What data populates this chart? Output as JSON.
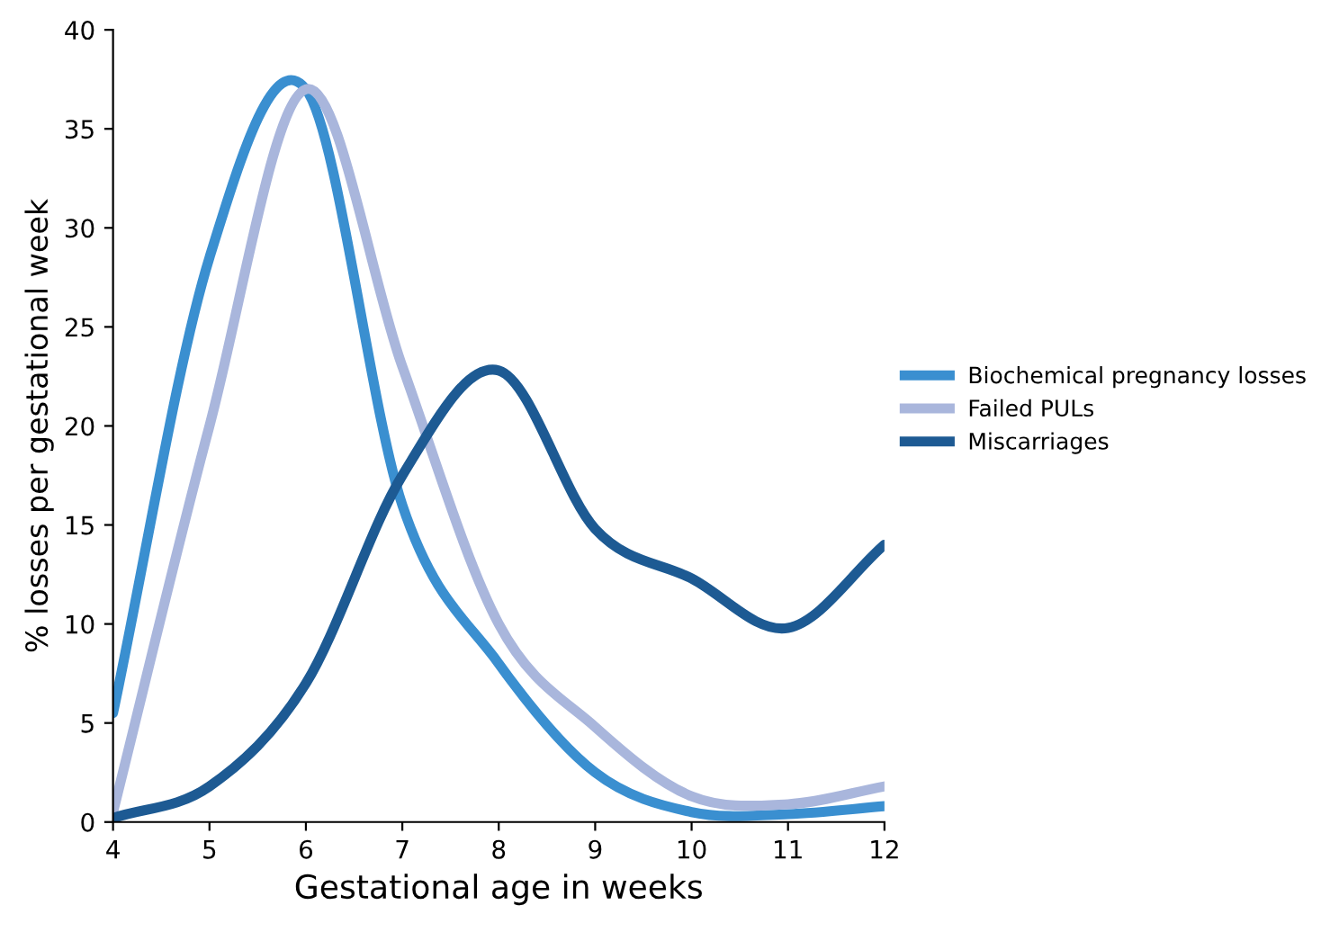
{
  "chart_data": {
    "type": "line",
    "xlabel": "Gestational age in weeks",
    "ylabel": "% losses per gestational week",
    "x": [
      4,
      5,
      6,
      7,
      8,
      9,
      10,
      11,
      12
    ],
    "series": [
      {
        "name": "Biochemical pregnancy losses",
        "color": "#3a8fd0",
        "values": [
          5.5,
          28.5,
          37,
          16,
          8,
          2.5,
          0.5,
          0.4,
          0.8
        ]
      },
      {
        "name": "Failed PULs",
        "color": "#a9b6dc",
        "values": [
          0.5,
          20,
          37,
          23,
          10,
          4.8,
          1.3,
          0.9,
          1.8
        ]
      },
      {
        "name": "Miscarriages",
        "color": "#1d5a93",
        "values": [
          0.2,
          1.8,
          7,
          17.5,
          22.8,
          14.8,
          12.3,
          9.8,
          14
        ]
      }
    ],
    "xlim": [
      4,
      12
    ],
    "xticks": [
      4,
      5,
      6,
      7,
      8,
      9,
      10,
      11,
      12
    ],
    "ylim": [
      0,
      40
    ],
    "yticks": [
      0,
      5,
      10,
      15,
      20,
      25,
      30,
      35,
      40
    ],
    "grid": false,
    "legend": "right",
    "marker": "none",
    "line_style": "solid"
  }
}
